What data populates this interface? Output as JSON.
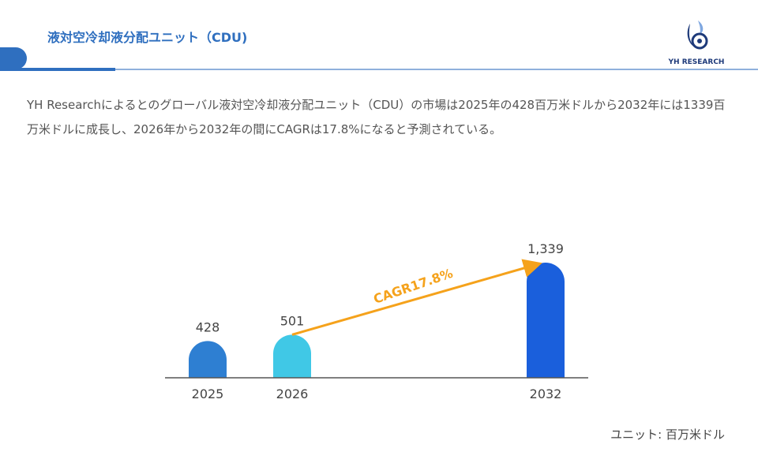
{
  "header": {
    "title": "液対空冷却液分配ユニット（CDU)",
    "logo_text": "YH RESEARCH"
  },
  "description": "YH Researchによるとのグローバル液対空冷却液分配ユニット（CDU）の市場は2025年の428百万米ドルから2032年には1339百万米ドルに成長し、2026年から2032年の間にCAGRは17.8%になると予測されている。",
  "unit_label": "ユニット: 百万米ドル",
  "colors": {
    "accent": "#2f6fbf",
    "arrow": "#f5a21b"
  },
  "chart_data": {
    "type": "bar",
    "categories": [
      "2025",
      "2026",
      "2032"
    ],
    "values": [
      428,
      501,
      1339
    ],
    "value_labels": [
      "428",
      "501",
      "1,339"
    ],
    "bar_colors": [
      "#2e7fd2",
      "#40c8e6",
      "#1a5fdc"
    ],
    "annotation": "CAGR17.8%",
    "grid": false
  }
}
